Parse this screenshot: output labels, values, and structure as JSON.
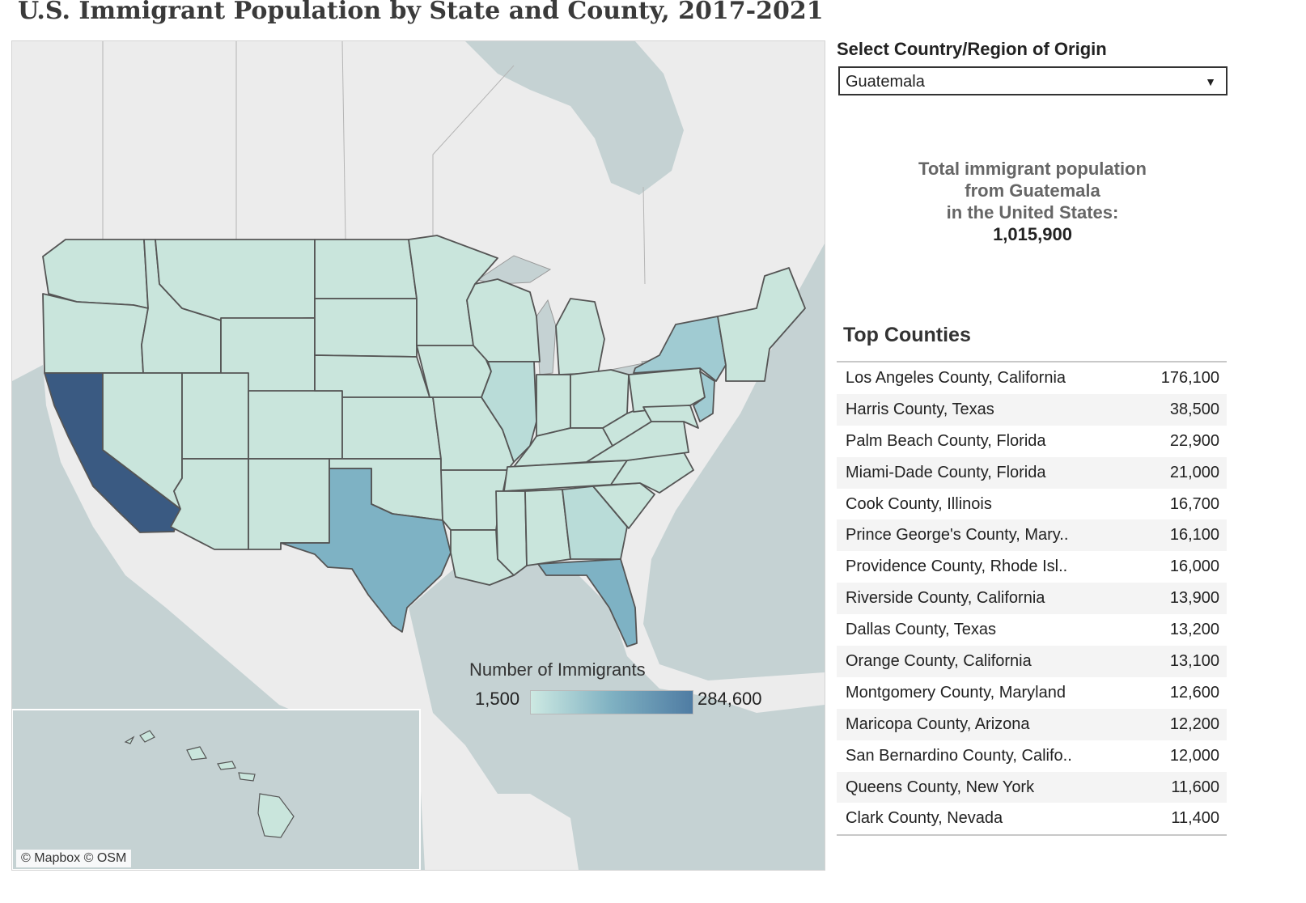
{
  "title": "U.S. Immigrant Population by State and County, 2017-2021",
  "map": {
    "attribution": "© Mapbox  © OSM",
    "legend": {
      "title": "Number of Immigrants",
      "min": "1,500",
      "max": "284,600"
    },
    "colors": {
      "water": "#c5d2d3",
      "land_foreign": "#ececec",
      "state_low": "#c9e5dc",
      "state_lowmid": "#b9dcd8",
      "state_mid": "#a0cbd2",
      "state_high": "#7eb2c4",
      "state_max": "#3a5a82",
      "border": "#555555"
    },
    "states_highlighted": [
      {
        "state": "California",
        "level": "max"
      },
      {
        "state": "Texas",
        "level": "high"
      },
      {
        "state": "Florida",
        "level": "high"
      },
      {
        "state": "New York",
        "level": "mid"
      },
      {
        "state": "New Jersey",
        "level": "mid"
      },
      {
        "state": "Illinois",
        "level": "lowmid"
      },
      {
        "state": "Georgia",
        "level": "lowmid"
      }
    ]
  },
  "filter": {
    "label": "Select Country/Region of Origin",
    "value": "Guatemala"
  },
  "total": {
    "line1": "Total immigrant population",
    "line2": "from Guatemala",
    "line3": "in the United States:",
    "value": "1,015,900"
  },
  "top_counties": {
    "title": "Top Counties",
    "rows": [
      {
        "name": "Los Angeles County, California",
        "value": "176,100"
      },
      {
        "name": "Harris County, Texas",
        "value": "38,500"
      },
      {
        "name": "Palm Beach County, Florida",
        "value": "22,900"
      },
      {
        "name": "Miami-Dade County, Florida",
        "value": "21,000"
      },
      {
        "name": "Cook County, Illinois",
        "value": "16,700"
      },
      {
        "name": "Prince George's County, Mary..",
        "value": "16,100"
      },
      {
        "name": "Providence County, Rhode Isl..",
        "value": "16,000"
      },
      {
        "name": "Riverside County, California",
        "value": "13,900"
      },
      {
        "name": "Dallas County, Texas",
        "value": "13,200"
      },
      {
        "name": "Orange County, California",
        "value": "13,100"
      },
      {
        "name": "Montgomery County, Maryland",
        "value": "12,600"
      },
      {
        "name": "Maricopa County, Arizona",
        "value": "12,200"
      },
      {
        "name": "San Bernardino County, Califo..",
        "value": "12,000"
      },
      {
        "name": "Queens County, New York",
        "value": "11,600"
      },
      {
        "name": "Clark County, Nevada",
        "value": "11,400"
      }
    ]
  }
}
